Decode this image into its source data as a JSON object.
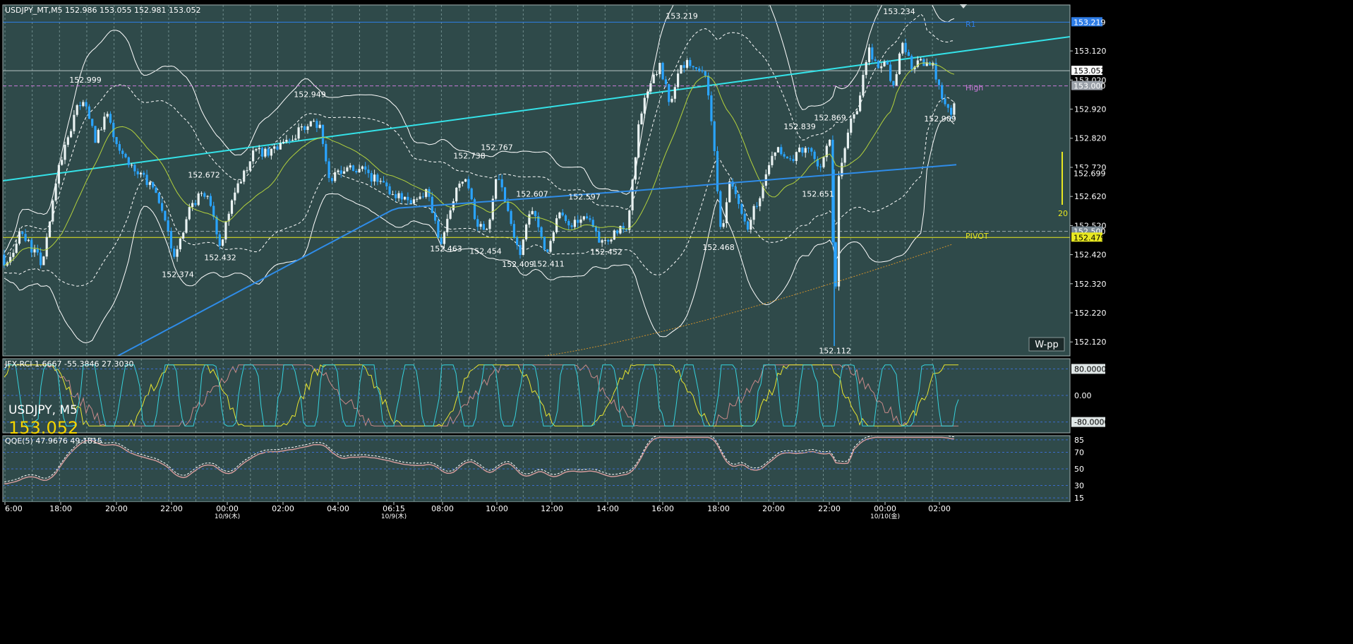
{
  "header": {
    "symbol_line": "USDJPY_MT,M5  152.986 153.055 152.981 153.052"
  },
  "symbol_overlay": {
    "symbol": "USDJPY, M5",
    "price": "153.052"
  },
  "badge": "W-pp",
  "vbar_label": "20",
  "colors": {
    "background": "#2f4a4a",
    "grid": "#6f8c8c",
    "candle": "#2aa4ff",
    "ma_blue": "#2f8ce8",
    "ma_green": "#b4d23c",
    "band": "#ffffff",
    "trend": "#34e2e8",
    "pivot": "#e8e821",
    "r1": "#2f7ee8",
    "high": "#c97ad8",
    "rci_fast": "#37d3dd",
    "rci_mid": "#e8e630",
    "rci_slow": "#c98a8a",
    "qqe": "#d39a9a"
  },
  "chart_data": [
    {
      "type": "candlestick",
      "title": "USDJPY_MT,M5",
      "ohlc_last": {
        "open": 152.986,
        "high": 153.055,
        "low": 152.981,
        "close": 153.052
      },
      "x_tick_labels": [
        "6:00",
        "18:00",
        "20:00",
        "22:00",
        "00:00",
        "02:00",
        "04:00",
        "06:15",
        "08:00",
        "10:00",
        "12:00",
        "14:00",
        "16:00",
        "18:00",
        "20:00",
        "22:00",
        "00:00",
        "02:00"
      ],
      "x_date_labels": [
        "10/9(木)",
        "10/9(木)",
        "10/10(金)"
      ],
      "y_ticks": [
        "153.120",
        "153.020",
        "152.920",
        "152.820",
        "152.720",
        "152.620",
        "152.520",
        "152.420",
        "152.320",
        "152.220",
        "152.120"
      ],
      "ylim": [
        152.072,
        153.278
      ],
      "price_tags": [
        {
          "label": "153.219",
          "value": 153.219,
          "kind": "R1"
        },
        {
          "label": "153.052",
          "value": 153.052,
          "kind": "last"
        },
        {
          "label": "153.000",
          "value": 153.0,
          "kind": "high"
        },
        {
          "label": "152.699",
          "value": 152.699,
          "kind": "ma"
        },
        {
          "label": "152.500",
          "value": 152.5,
          "kind": "band"
        },
        {
          "label": "152.479",
          "value": 152.479,
          "kind": "pivot"
        }
      ],
      "levels": [
        {
          "name": "R1",
          "value": 153.219
        },
        {
          "name": "High",
          "value": 153.0
        },
        {
          "name": "PIVOT",
          "value": 152.479
        }
      ],
      "annotations": [
        {
          "label": "152.999",
          "value": 152.999
        },
        {
          "label": "152.949",
          "value": 152.949
        },
        {
          "label": "152.672",
          "value": 152.672
        },
        {
          "label": "152.374",
          "value": 152.374
        },
        {
          "label": "152.432",
          "value": 152.432
        },
        {
          "label": "152.767",
          "value": 152.767
        },
        {
          "label": "152.738",
          "value": 152.738
        },
        {
          "label": "152.607",
          "value": 152.607
        },
        {
          "label": "152.597",
          "value": 152.597
        },
        {
          "label": "152.463",
          "value": 152.463
        },
        {
          "label": "152.454",
          "value": 152.454
        },
        {
          "label": "152.409",
          "value": 152.409
        },
        {
          "label": "152.411",
          "value": 152.411
        },
        {
          "label": "152.452",
          "value": 152.452
        },
        {
          "label": "153.219",
          "value": 153.219
        },
        {
          "label": "152.468",
          "value": 152.468
        },
        {
          "label": "152.839",
          "value": 152.839
        },
        {
          "label": "152.869",
          "value": 152.869
        },
        {
          "label": "152.651",
          "value": 152.651
        },
        {
          "label": "152.112",
          "value": 152.112
        },
        {
          "label": "153.234",
          "value": 153.234
        },
        {
          "label": "152.909",
          "value": 152.909
        }
      ]
    },
    {
      "type": "line",
      "title": "JFX-RCI 1.6667 -55.3846 27.3030",
      "y_ticks": [
        "80.0000",
        "0.00",
        "-80.0000"
      ],
      "ylim": [
        -100,
        100
      ],
      "values": [
        1.6667,
        -55.3846,
        27.303
      ]
    },
    {
      "type": "line",
      "title": "QQE(5) 47.9676 49.1815",
      "y_ticks": [
        "85",
        "70",
        "50",
        "30",
        "15"
      ],
      "ylim": [
        10,
        90
      ],
      "values": [
        47.9676,
        49.1815
      ]
    }
  ]
}
